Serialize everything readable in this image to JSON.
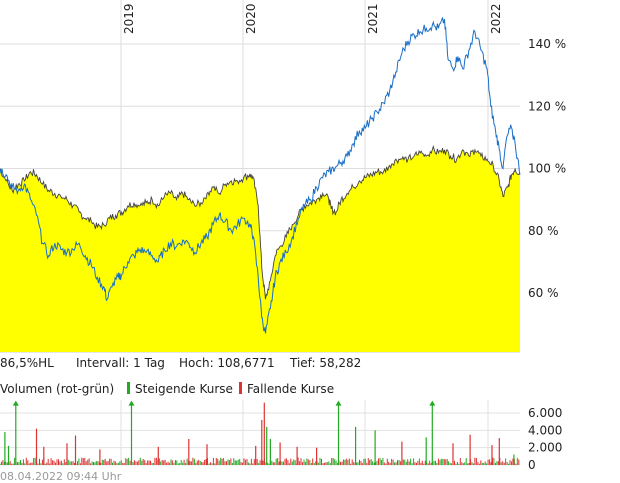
{
  "chart_data": {
    "type": "area",
    "x_ticks": [
      "2019",
      "2020",
      "2021",
      "2022"
    ],
    "y_ticks": [
      "140 %",
      "120 %",
      "100 %",
      "80 %",
      "60 %"
    ],
    "ylim": [
      40,
      150
    ],
    "grid": true,
    "info": {
      "performance": "86,5%HL",
      "interval": "Intervall: 1 Tag",
      "high": "Hoch: 108,6771",
      "low": "Tief:  58,282"
    },
    "series": [
      {
        "type": "area",
        "color": "#ffff00",
        "line_color": "#444444",
        "points": [
          [
            2018.0,
            100
          ],
          [
            2018.05,
            96
          ],
          [
            2018.1,
            93
          ],
          [
            2018.15,
            95
          ],
          [
            2018.2,
            96
          ],
          [
            2018.25,
            99
          ],
          [
            2018.3,
            98
          ],
          [
            2018.35,
            95
          ],
          [
            2018.4,
            93
          ],
          [
            2018.45,
            92
          ],
          [
            2018.5,
            91
          ],
          [
            2018.55,
            90
          ],
          [
            2018.6,
            88
          ],
          [
            2018.65,
            86
          ],
          [
            2018.7,
            84
          ],
          [
            2018.75,
            83
          ],
          [
            2018.8,
            81
          ],
          [
            2018.85,
            82
          ],
          [
            2018.9,
            84
          ],
          [
            2018.95,
            85
          ],
          [
            2019.0,
            86
          ],
          [
            2019.05,
            88
          ],
          [
            2019.1,
            89
          ],
          [
            2019.15,
            88
          ],
          [
            2019.2,
            89
          ],
          [
            2019.25,
            90
          ],
          [
            2019.3,
            88
          ],
          [
            2019.35,
            91
          ],
          [
            2019.4,
            92
          ],
          [
            2019.45,
            90
          ],
          [
            2019.5,
            92
          ],
          [
            2019.55,
            90
          ],
          [
            2019.6,
            88
          ],
          [
            2019.65,
            89
          ],
          [
            2019.7,
            92
          ],
          [
            2019.75,
            94
          ],
          [
            2019.8,
            92
          ],
          [
            2019.85,
            95
          ],
          [
            2019.9,
            96
          ],
          [
            2019.95,
            96
          ],
          [
            2020.0,
            97
          ],
          [
            2020.05,
            98
          ],
          [
            2020.08,
            97
          ],
          [
            2020.12,
            88
          ],
          [
            2020.15,
            68
          ],
          [
            2020.18,
            58
          ],
          [
            2020.22,
            64
          ],
          [
            2020.26,
            72
          ],
          [
            2020.3,
            75
          ],
          [
            2020.35,
            78
          ],
          [
            2020.4,
            82
          ],
          [
            2020.45,
            85
          ],
          [
            2020.5,
            88
          ],
          [
            2020.55,
            89
          ],
          [
            2020.6,
            90
          ],
          [
            2020.65,
            92
          ],
          [
            2020.7,
            90
          ],
          [
            2020.72,
            87
          ],
          [
            2020.76,
            86
          ],
          [
            2020.8,
            90
          ],
          [
            2020.85,
            92
          ],
          [
            2020.9,
            94
          ],
          [
            2020.95,
            96
          ],
          [
            2021.0,
            97
          ],
          [
            2021.05,
            98
          ],
          [
            2021.1,
            99
          ],
          [
            2021.15,
            99
          ],
          [
            2021.2,
            101
          ],
          [
            2021.25,
            103
          ],
          [
            2021.3,
            103
          ],
          [
            2021.35,
            103
          ],
          [
            2021.4,
            104
          ],
          [
            2021.45,
            105
          ],
          [
            2021.5,
            104
          ],
          [
            2021.55,
            106
          ],
          [
            2021.6,
            105
          ],
          [
            2021.65,
            106
          ],
          [
            2021.7,
            104
          ],
          [
            2021.75,
            103
          ],
          [
            2021.8,
            106
          ],
          [
            2021.85,
            104
          ],
          [
            2021.9,
            106
          ],
          [
            2021.95,
            104
          ],
          [
            2022.0,
            103
          ],
          [
            2022.05,
            101
          ],
          [
            2022.1,
            96
          ],
          [
            2022.13,
            91
          ],
          [
            2022.17,
            94
          ],
          [
            2022.2,
            98
          ],
          [
            2022.23,
            100
          ],
          [
            2022.27,
            98
          ]
        ]
      },
      {
        "type": "line",
        "color": "#1a6ec8",
        "points": [
          [
            2018.0,
            100
          ],
          [
            2018.05,
            98
          ],
          [
            2018.1,
            94
          ],
          [
            2018.15,
            93
          ],
          [
            2018.2,
            95
          ],
          [
            2018.25,
            90
          ],
          [
            2018.3,
            85
          ],
          [
            2018.35,
            76
          ],
          [
            2018.4,
            72
          ],
          [
            2018.45,
            76
          ],
          [
            2018.5,
            74
          ],
          [
            2018.55,
            73
          ],
          [
            2018.6,
            74
          ],
          [
            2018.65,
            76
          ],
          [
            2018.7,
            72
          ],
          [
            2018.75,
            69
          ],
          [
            2018.8,
            65
          ],
          [
            2018.85,
            62
          ],
          [
            2018.88,
            58
          ],
          [
            2018.92,
            62
          ],
          [
            2018.97,
            65
          ],
          [
            2019.0,
            66
          ],
          [
            2019.05,
            70
          ],
          [
            2019.1,
            72
          ],
          [
            2019.15,
            74
          ],
          [
            2019.2,
            73
          ],
          [
            2019.25,
            72
          ],
          [
            2019.3,
            70
          ],
          [
            2019.35,
            74
          ],
          [
            2019.4,
            76
          ],
          [
            2019.45,
            75
          ],
          [
            2019.5,
            77
          ],
          [
            2019.55,
            76
          ],
          [
            2019.6,
            73
          ],
          [
            2019.65,
            76
          ],
          [
            2019.7,
            78
          ],
          [
            2019.75,
            82
          ],
          [
            2019.8,
            85
          ],
          [
            2019.85,
            83
          ],
          [
            2019.9,
            80
          ],
          [
            2019.95,
            82
          ],
          [
            2020.0,
            84
          ],
          [
            2020.05,
            82
          ],
          [
            2020.08,
            78
          ],
          [
            2020.12,
            65
          ],
          [
            2020.15,
            52
          ],
          [
            2020.18,
            47
          ],
          [
            2020.22,
            55
          ],
          [
            2020.26,
            65
          ],
          [
            2020.3,
            70
          ],
          [
            2020.35,
            73
          ],
          [
            2020.4,
            78
          ],
          [
            2020.45,
            84
          ],
          [
            2020.5,
            88
          ],
          [
            2020.55,
            90
          ],
          [
            2020.6,
            94
          ],
          [
            2020.65,
            97
          ],
          [
            2020.7,
            99
          ],
          [
            2020.75,
            100
          ],
          [
            2020.8,
            102
          ],
          [
            2020.85,
            104
          ],
          [
            2020.9,
            108
          ],
          [
            2020.95,
            112
          ],
          [
            2021.0,
            113
          ],
          [
            2021.05,
            116
          ],
          [
            2021.1,
            118
          ],
          [
            2021.15,
            121
          ],
          [
            2021.2,
            125
          ],
          [
            2021.25,
            131
          ],
          [
            2021.3,
            137
          ],
          [
            2021.35,
            141
          ],
          [
            2021.4,
            143
          ],
          [
            2021.45,
            144
          ],
          [
            2021.5,
            145
          ],
          [
            2021.55,
            146
          ],
          [
            2021.6,
            145
          ],
          [
            2021.65,
            148
          ],
          [
            2021.68,
            135
          ],
          [
            2021.72,
            132
          ],
          [
            2021.76,
            136
          ],
          [
            2021.8,
            132
          ],
          [
            2021.85,
            138
          ],
          [
            2021.9,
            144
          ],
          [
            2021.95,
            138
          ],
          [
            2022.0,
            132
          ],
          [
            2022.03,
            120
          ],
          [
            2022.07,
            112
          ],
          [
            2022.1,
            106
          ],
          [
            2022.13,
            100
          ],
          [
            2022.16,
            110
          ],
          [
            2022.2,
            113
          ],
          [
            2022.23,
            108
          ],
          [
            2022.27,
            98
          ]
        ]
      }
    ],
    "volume": {
      "title": "Volumen (rot-grün)",
      "legend_up": "Steigende Kurse",
      "legend_down": "Fallende Kurse",
      "up_color": "#22aa22",
      "down_color": "#dd3333",
      "y_ticks": [
        "6.000",
        "4.000",
        "2.000",
        "0"
      ],
      "ylim": [
        0,
        7500
      ],
      "spikes": [
        {
          "x": 2018.04,
          "v": 3800,
          "up": true
        },
        {
          "x": 2018.07,
          "v": 2200,
          "up": true
        },
        {
          "x": 2018.13,
          "v": 7200,
          "up": true,
          "capped": true
        },
        {
          "x": 2018.3,
          "v": 4200,
          "up": false
        },
        {
          "x": 2018.36,
          "v": 2100,
          "up": false
        },
        {
          "x": 2018.55,
          "v": 2500,
          "up": false
        },
        {
          "x": 2018.62,
          "v": 3400,
          "up": false
        },
        {
          "x": 2018.82,
          "v": 1800,
          "up": false
        },
        {
          "x": 2019.08,
          "v": 7200,
          "up": true,
          "capped": true
        },
        {
          "x": 2019.3,
          "v": 2100,
          "up": false
        },
        {
          "x": 2019.55,
          "v": 3000,
          "up": false
        },
        {
          "x": 2019.7,
          "v": 2400,
          "up": false
        },
        {
          "x": 2020.1,
          "v": 2200,
          "up": false
        },
        {
          "x": 2020.15,
          "v": 5200,
          "up": false
        },
        {
          "x": 2020.17,
          "v": 7200,
          "up": false
        },
        {
          "x": 2020.19,
          "v": 4400,
          "up": true
        },
        {
          "x": 2020.22,
          "v": 3000,
          "up": true
        },
        {
          "x": 2020.3,
          "v": 2600,
          "up": false
        },
        {
          "x": 2020.44,
          "v": 2100,
          "up": false
        },
        {
          "x": 2020.6,
          "v": 2000,
          "up": false
        },
        {
          "x": 2020.78,
          "v": 7200,
          "up": true,
          "capped": true
        },
        {
          "x": 2020.92,
          "v": 4400,
          "up": true
        },
        {
          "x": 2021.08,
          "v": 4000,
          "up": true
        },
        {
          "x": 2021.3,
          "v": 2700,
          "up": false
        },
        {
          "x": 2021.5,
          "v": 3200,
          "up": true
        },
        {
          "x": 2021.55,
          "v": 7200,
          "up": true,
          "capped": true
        },
        {
          "x": 2021.72,
          "v": 2500,
          "up": false
        },
        {
          "x": 2021.86,
          "v": 3500,
          "up": false
        },
        {
          "x": 2022.04,
          "v": 2300,
          "up": false
        },
        {
          "x": 2022.1,
          "v": 3100,
          "up": false
        },
        {
          "x": 2022.22,
          "v": 1200,
          "up": true
        }
      ]
    }
  },
  "footer": {
    "timestamp": "08.04.2022 09:44 Uhr"
  }
}
